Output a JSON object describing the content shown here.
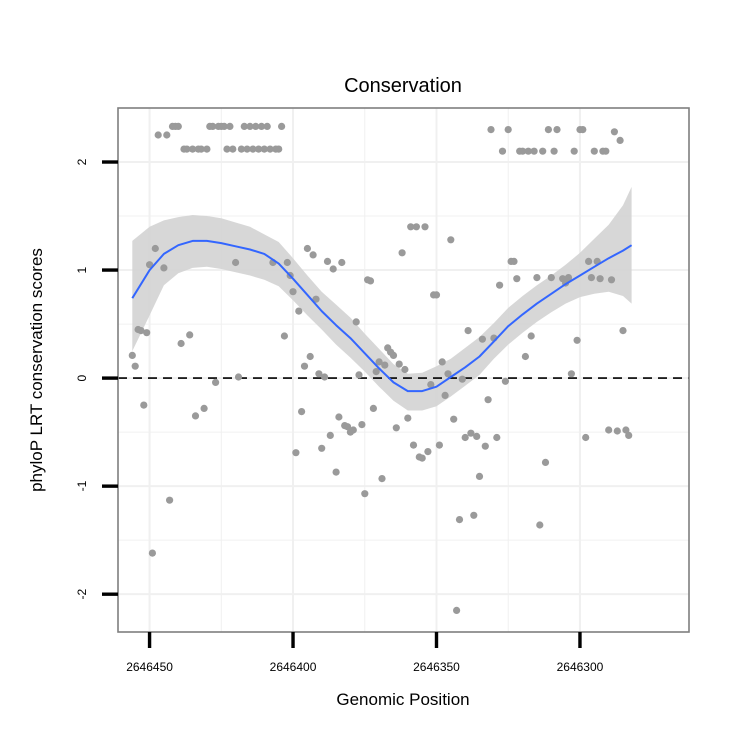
{
  "chart_data": {
    "type": "scatter",
    "title": "Conservation",
    "xlabel": "Genomic Position",
    "ylabel": "phyloP LRT conservation scores",
    "x_reversed": true,
    "xlim": [
      2646461,
      2646262
    ],
    "ylim": [
      -2.35,
      2.5
    ],
    "x_ticks": [
      {
        "value": 2646450,
        "label": "2646450"
      },
      {
        "value": 2646400,
        "label": "2646400"
      },
      {
        "value": 2646350,
        "label": "2646350"
      },
      {
        "value": 2646300,
        "label": "2646300"
      }
    ],
    "y_ticks": [
      {
        "value": 2,
        "label": "2"
      },
      {
        "value": 1,
        "label": "1"
      },
      {
        "value": 0,
        "label": "0"
      },
      {
        "value": -1,
        "label": "-1"
      },
      {
        "value": -2,
        "label": "-2"
      }
    ],
    "grid": true,
    "reference_line": {
      "y": 0,
      "style": "dashed"
    },
    "colors": {
      "points": "#9a9a9a",
      "smooth_line": "#3366ff",
      "ribbon": "#d3d3d3",
      "panel_border": "#7f7f7f",
      "grid": "#f0f0f0",
      "reference_line": "#000000"
    },
    "points": [
      [
        2646456,
        0.21
      ],
      [
        2646454,
        0.45
      ],
      [
        2646455,
        0.11
      ],
      [
        2646453,
        0.44
      ],
      [
        2646452,
        -0.25
      ],
      [
        2646451,
        0.42
      ],
      [
        2646450,
        1.05
      ],
      [
        2646449,
        -1.62
      ],
      [
        2646448,
        1.2
      ],
      [
        2646447,
        2.25
      ],
      [
        2646445,
        1.02
      ],
      [
        2646444,
        2.25
      ],
      [
        2646443,
        -1.13
      ],
      [
        2646442,
        2.33
      ],
      [
        2646441,
        2.33
      ],
      [
        2646440,
        2.33
      ],
      [
        2646439,
        0.32
      ],
      [
        2646438,
        2.12
      ],
      [
        2646437,
        2.12
      ],
      [
        2646436,
        0.4
      ],
      [
        2646435,
        2.12
      ],
      [
        2646434,
        -0.35
      ],
      [
        2646433,
        2.12
      ],
      [
        2646432,
        2.12
      ],
      [
        2646431,
        -0.28
      ],
      [
        2646430,
        2.12
      ],
      [
        2646429,
        2.33
      ],
      [
        2646428,
        2.33
      ],
      [
        2646427,
        -0.04
      ],
      [
        2646426,
        2.33
      ],
      [
        2646425,
        2.33
      ],
      [
        2646424,
        2.33
      ],
      [
        2646423,
        2.12
      ],
      [
        2646422,
        2.33
      ],
      [
        2646421,
        2.12
      ],
      [
        2646420,
        1.07
      ],
      [
        2646419,
        0.01
      ],
      [
        2646418,
        2.12
      ],
      [
        2646417,
        2.33
      ],
      [
        2646416,
        2.12
      ],
      [
        2646415,
        2.33
      ],
      [
        2646414,
        2.12
      ],
      [
        2646413,
        2.33
      ],
      [
        2646412,
        2.12
      ],
      [
        2646411,
        2.33
      ],
      [
        2646410,
        2.12
      ],
      [
        2646409,
        2.33
      ],
      [
        2646408,
        2.12
      ],
      [
        2646407,
        1.07
      ],
      [
        2646406,
        2.12
      ],
      [
        2646405,
        2.12
      ],
      [
        2646404,
        2.33
      ],
      [
        2646403,
        0.39
      ],
      [
        2646402,
        1.07
      ],
      [
        2646401,
        0.95
      ],
      [
        2646400,
        0.8
      ],
      [
        2646399,
        -0.69
      ],
      [
        2646398,
        0.62
      ],
      [
        2646397,
        -0.31
      ],
      [
        2646396,
        0.11
      ],
      [
        2646395,
        1.2
      ],
      [
        2646394,
        0.2
      ],
      [
        2646393,
        1.14
      ],
      [
        2646392,
        0.73
      ],
      [
        2646391,
        0.04
      ],
      [
        2646390,
        -0.65
      ],
      [
        2646389,
        0.01
      ],
      [
        2646388,
        1.08
      ],
      [
        2646387,
        -0.53
      ],
      [
        2646386,
        1.01
      ],
      [
        2646385,
        -0.87
      ],
      [
        2646384,
        -0.36
      ],
      [
        2646383,
        1.07
      ],
      [
        2646382,
        -0.44
      ],
      [
        2646381,
        -0.45
      ],
      [
        2646380,
        -0.5
      ],
      [
        2646379,
        -0.48
      ],
      [
        2646378,
        0.52
      ],
      [
        2646377,
        0.03
      ],
      [
        2646376,
        -0.43
      ],
      [
        2646375,
        -1.07
      ],
      [
        2646374,
        0.91
      ],
      [
        2646373,
        0.9
      ],
      [
        2646372,
        -0.28
      ],
      [
        2646371,
        0.06
      ],
      [
        2646370,
        0.15
      ],
      [
        2646369,
        -0.93
      ],
      [
        2646368,
        0.12
      ],
      [
        2646367,
        0.28
      ],
      [
        2646366,
        0.24
      ],
      [
        2646365,
        0.21
      ],
      [
        2646364,
        -0.46
      ],
      [
        2646363,
        0.13
      ],
      [
        2646362,
        1.16
      ],
      [
        2646361,
        0.08
      ],
      [
        2646360,
        -0.37
      ],
      [
        2646359,
        1.4
      ],
      [
        2646358,
        -0.62
      ],
      [
        2646357,
        1.4
      ],
      [
        2646356,
        -0.73
      ],
      [
        2646355,
        -0.74
      ],
      [
        2646354,
        1.4
      ],
      [
        2646353,
        -0.68
      ],
      [
        2646352,
        -0.06
      ],
      [
        2646351,
        0.77
      ],
      [
        2646350,
        0.77
      ],
      [
        2646349,
        -0.62
      ],
      [
        2646348,
        0.15
      ],
      [
        2646347,
        -0.16
      ],
      [
        2646346,
        0.04
      ],
      [
        2646345,
        1.28
      ],
      [
        2646344,
        -0.38
      ],
      [
        2646343,
        -2.15
      ],
      [
        2646342,
        -1.31
      ],
      [
        2646341,
        -0.01
      ],
      [
        2646340,
        -0.55
      ],
      [
        2646339,
        0.44
      ],
      [
        2646338,
        -0.51
      ],
      [
        2646337,
        -1.27
      ],
      [
        2646336,
        -0.54
      ],
      [
        2646335,
        -0.91
      ],
      [
        2646334,
        0.36
      ],
      [
        2646333,
        -0.63
      ],
      [
        2646332,
        -0.2
      ],
      [
        2646331,
        2.3
      ],
      [
        2646330,
        0.37
      ],
      [
        2646329,
        -0.55
      ],
      [
        2646328,
        0.86
      ],
      [
        2646327,
        2.1
      ],
      [
        2646326,
        -0.03
      ],
      [
        2646325,
        2.3
      ],
      [
        2646324,
        1.08
      ],
      [
        2646323,
        1.08
      ],
      [
        2646322,
        0.92
      ],
      [
        2646321,
        2.1
      ],
      [
        2646320,
        2.1
      ],
      [
        2646319,
        0.2
      ],
      [
        2646318,
        2.1
      ],
      [
        2646317,
        0.39
      ],
      [
        2646316,
        2.1
      ],
      [
        2646315,
        0.93
      ],
      [
        2646314,
        -1.36
      ],
      [
        2646313,
        2.1
      ],
      [
        2646312,
        -0.78
      ],
      [
        2646311,
        2.3
      ],
      [
        2646310,
        0.93
      ],
      [
        2646309,
        2.1
      ],
      [
        2646308,
        2.3
      ],
      [
        2646306,
        0.92
      ],
      [
        2646305,
        0.88
      ],
      [
        2646304,
        0.93
      ],
      [
        2646303,
        0.04
      ],
      [
        2646302,
        2.1
      ],
      [
        2646301,
        0.35
      ],
      [
        2646300,
        2.3
      ],
      [
        2646299,
        2.3
      ],
      [
        2646298,
        -0.55
      ],
      [
        2646297,
        1.08
      ],
      [
        2646296,
        0.93
      ],
      [
        2646295,
        2.1
      ],
      [
        2646294,
        1.08
      ],
      [
        2646293,
        0.92
      ],
      [
        2646292,
        2.1
      ],
      [
        2646291,
        2.1
      ],
      [
        2646290,
        -0.48
      ],
      [
        2646289,
        0.91
      ],
      [
        2646288,
        2.28
      ],
      [
        2646287,
        -0.49
      ],
      [
        2646286,
        2.2
      ],
      [
        2646285,
        0.44
      ],
      [
        2646284,
        -0.48
      ],
      [
        2646283,
        -0.53
      ]
    ],
    "smooth": [
      [
        2646456,
        0.74
      ],
      [
        2646450,
        1.0
      ],
      [
        2646445,
        1.15
      ],
      [
        2646440,
        1.23
      ],
      [
        2646435,
        1.27
      ],
      [
        2646430,
        1.27
      ],
      [
        2646425,
        1.25
      ],
      [
        2646420,
        1.22
      ],
      [
        2646415,
        1.19
      ],
      [
        2646410,
        1.15
      ],
      [
        2646405,
        1.06
      ],
      [
        2646400,
        0.92
      ],
      [
        2646395,
        0.77
      ],
      [
        2646390,
        0.62
      ],
      [
        2646385,
        0.49
      ],
      [
        2646380,
        0.37
      ],
      [
        2646375,
        0.23
      ],
      [
        2646370,
        0.09
      ],
      [
        2646365,
        -0.04
      ],
      [
        2646360,
        -0.12
      ],
      [
        2646355,
        -0.12
      ],
      [
        2646350,
        -0.08
      ],
      [
        2646345,
        0.01
      ],
      [
        2646340,
        0.1
      ],
      [
        2646335,
        0.2
      ],
      [
        2646330,
        0.34
      ],
      [
        2646325,
        0.48
      ],
      [
        2646320,
        0.59
      ],
      [
        2646315,
        0.69
      ],
      [
        2646310,
        0.78
      ],
      [
        2646305,
        0.87
      ],
      [
        2646300,
        0.95
      ],
      [
        2646295,
        1.03
      ],
      [
        2646290,
        1.11
      ],
      [
        2646285,
        1.18
      ],
      [
        2646282,
        1.23
      ]
    ],
    "ribbon": [
      [
        2646456,
        1.27,
        0.25
      ],
      [
        2646450,
        1.4,
        0.58
      ],
      [
        2646445,
        1.46,
        0.86
      ],
      [
        2646440,
        1.49,
        0.97
      ],
      [
        2646435,
        1.51,
        1.02
      ],
      [
        2646430,
        1.5,
        1.03
      ],
      [
        2646425,
        1.48,
        1.01
      ],
      [
        2646420,
        1.44,
        0.98
      ],
      [
        2646415,
        1.4,
        0.95
      ],
      [
        2646410,
        1.33,
        0.91
      ],
      [
        2646405,
        1.26,
        0.85
      ],
      [
        2646400,
        1.11,
        0.72
      ],
      [
        2646395,
        0.95,
        0.58
      ],
      [
        2646390,
        0.8,
        0.45
      ],
      [
        2646385,
        0.68,
        0.31
      ],
      [
        2646380,
        0.56,
        0.19
      ],
      [
        2646375,
        0.41,
        0.06
      ],
      [
        2646370,
        0.27,
        -0.08
      ],
      [
        2646365,
        0.13,
        -0.21
      ],
      [
        2646360,
        0.04,
        -0.3
      ],
      [
        2646355,
        0.05,
        -0.3
      ],
      [
        2646350,
        0.11,
        -0.26
      ],
      [
        2646345,
        0.18,
        -0.17
      ],
      [
        2646340,
        0.28,
        -0.07
      ],
      [
        2646335,
        0.38,
        0.03
      ],
      [
        2646330,
        0.51,
        0.18
      ],
      [
        2646325,
        0.65,
        0.31
      ],
      [
        2646320,
        0.76,
        0.42
      ],
      [
        2646315,
        0.86,
        0.52
      ],
      [
        2646310,
        0.95,
        0.61
      ],
      [
        2646305,
        1.05,
        0.69
      ],
      [
        2646300,
        1.16,
        0.75
      ],
      [
        2646295,
        1.29,
        0.78
      ],
      [
        2646290,
        1.42,
        0.8
      ],
      [
        2646285,
        1.6,
        0.76
      ],
      [
        2646282,
        1.77,
        0.69
      ]
    ]
  }
}
